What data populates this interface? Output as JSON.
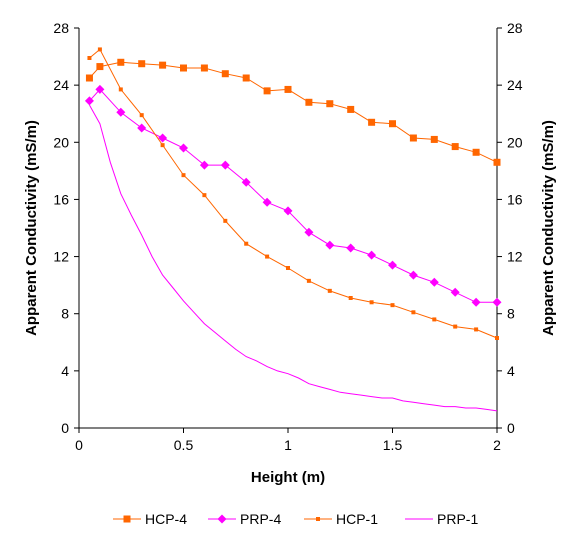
{
  "chart_data": {
    "type": "line",
    "title": "",
    "xlabel": "Height (m)",
    "ylabel": "Apparent Conductivity (mS/m)",
    "ylabel_right": "Apparent Conductivity (mS/m)",
    "xlim": [
      0,
      2
    ],
    "ylim": [
      0,
      28
    ],
    "x_ticks": [
      "0",
      "0.5",
      "1",
      "1.5",
      "2"
    ],
    "x_tick_values": [
      0,
      0.5,
      1,
      1.5,
      2
    ],
    "y_ticks": [
      "0",
      "4",
      "8",
      "12",
      "16",
      "20",
      "24",
      "28"
    ],
    "y_tick_values": [
      0,
      4,
      8,
      12,
      16,
      20,
      24,
      28
    ],
    "grid": false,
    "legend_position": "bottom",
    "series": [
      {
        "name": "HCP-4",
        "color": "#ff6600",
        "marker": "square",
        "x": [
          0.05,
          0.1,
          0.2,
          0.3,
          0.4,
          0.5,
          0.6,
          0.7,
          0.8,
          0.9,
          1.0,
          1.1,
          1.2,
          1.3,
          1.4,
          1.5,
          1.6,
          1.7,
          1.8,
          1.9,
          2.0
        ],
        "y": [
          24.5,
          25.3,
          25.6,
          25.5,
          25.4,
          25.2,
          25.2,
          24.8,
          24.5,
          23.6,
          23.7,
          22.8,
          22.7,
          22.3,
          21.4,
          21.3,
          20.3,
          20.2,
          19.7,
          19.3,
          18.6
        ]
      },
      {
        "name": "PRP-4",
        "color": "#ff00ff",
        "marker": "diamond",
        "x": [
          0.05,
          0.1,
          0.2,
          0.3,
          0.4,
          0.5,
          0.6,
          0.7,
          0.8,
          0.9,
          1.0,
          1.1,
          1.2,
          1.3,
          1.4,
          1.5,
          1.6,
          1.7,
          1.8,
          1.9,
          2.0
        ],
        "y": [
          22.9,
          23.7,
          22.1,
          21.0,
          20.3,
          19.6,
          18.4,
          18.4,
          17.2,
          15.8,
          15.2,
          13.7,
          12.8,
          12.6,
          12.1,
          11.4,
          10.7,
          10.2,
          9.5,
          8.8,
          8.8
        ]
      },
      {
        "name": "HCP-1",
        "color": "#ff6600",
        "marker": "small-square",
        "x": [
          0.05,
          0.1,
          0.2,
          0.3,
          0.4,
          0.5,
          0.6,
          0.7,
          0.8,
          0.9,
          1.0,
          1.1,
          1.2,
          1.3,
          1.4,
          1.5,
          1.6,
          1.7,
          1.8,
          1.9,
          2.0
        ],
        "y": [
          25.9,
          26.5,
          23.7,
          21.9,
          19.8,
          17.7,
          16.3,
          14.5,
          12.9,
          12.0,
          11.2,
          10.3,
          9.6,
          9.1,
          8.8,
          8.6,
          8.1,
          7.6,
          7.1,
          6.9,
          6.3
        ]
      },
      {
        "name": "PRP-1",
        "color": "#ff00ff",
        "marker": "none",
        "x": [
          0.05,
          0.1,
          0.15,
          0.2,
          0.25,
          0.3,
          0.35,
          0.4,
          0.45,
          0.5,
          0.55,
          0.6,
          0.65,
          0.7,
          0.75,
          0.8,
          0.85,
          0.9,
          0.95,
          1.0,
          1.05,
          1.1,
          1.15,
          1.2,
          1.25,
          1.3,
          1.35,
          1.4,
          1.45,
          1.5,
          1.55,
          1.6,
          1.65,
          1.7,
          1.75,
          1.8,
          1.85,
          1.9,
          1.95,
          2.0
        ],
        "y": [
          22.6,
          21.3,
          18.6,
          16.4,
          14.9,
          13.5,
          12.0,
          10.7,
          9.8,
          8.9,
          8.1,
          7.3,
          6.7,
          6.1,
          5.5,
          5.0,
          4.7,
          4.3,
          4.0,
          3.8,
          3.5,
          3.1,
          2.9,
          2.7,
          2.5,
          2.4,
          2.3,
          2.2,
          2.1,
          2.1,
          1.9,
          1.8,
          1.7,
          1.6,
          1.5,
          1.5,
          1.4,
          1.4,
          1.3,
          1.2
        ]
      }
    ]
  }
}
